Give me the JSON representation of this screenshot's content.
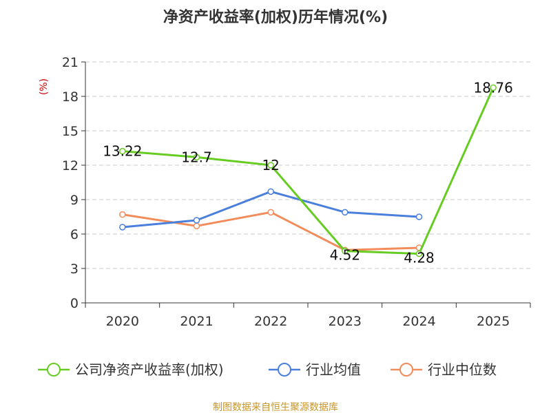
{
  "chart_data": {
    "type": "line",
    "title": "净资产收益率(加权)历年情况(%)",
    "ylabel": "(%)",
    "xlabel": "",
    "categories": [
      "2020",
      "2021",
      "2022",
      "2023",
      "2024",
      "2025"
    ],
    "ylim": [
      0,
      21
    ],
    "yticks": [
      0,
      3,
      6,
      9,
      12,
      15,
      18,
      21
    ],
    "grid": true,
    "legend_position": "bottom",
    "series": [
      {
        "name": "公司净资产收益率(加权)",
        "color": "#66cc22",
        "values": [
          13.22,
          12.7,
          12,
          4.52,
          4.28,
          18.76
        ],
        "labels": [
          "13.22",
          "12.7",
          "12",
          "4.52",
          "4.28",
          "18.76"
        ]
      },
      {
        "name": "行业均值",
        "color": "#4a7fdb",
        "values": [
          6.6,
          7.2,
          9.7,
          7.9,
          7.5,
          null
        ]
      },
      {
        "name": "行业中位数",
        "color": "#f28c5a",
        "values": [
          7.7,
          6.7,
          7.9,
          4.6,
          4.8,
          null
        ]
      }
    ]
  },
  "footer": {
    "source": "制图数据来自恒生聚源数据库",
    "source_color": "#c8962a"
  },
  "colors": {
    "axis": "#333333",
    "grid": "#c8c8c8",
    "ylabel": "#cc0000"
  }
}
